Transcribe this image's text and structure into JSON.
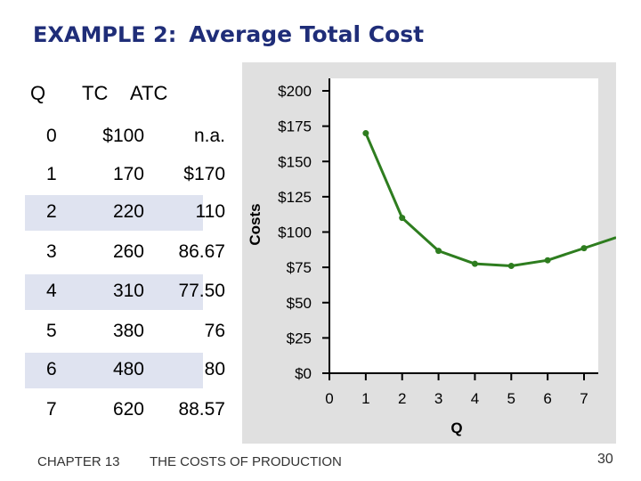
{
  "slide": {
    "title_lead": "EXAMPLE 2:",
    "title_main": "Average Total Cost",
    "footer_chapter": "CHAPTER 13",
    "footer_topic": "THE COSTS OF PRODUCTION",
    "page_number": "30"
  },
  "table": {
    "headers": {
      "q": "Q",
      "tc": "TC",
      "atc": "ATC"
    },
    "rows": [
      {
        "q": "0",
        "tc": "$100",
        "atc": "n.a."
      },
      {
        "q": "1",
        "tc": "170",
        "atc": "$170"
      },
      {
        "q": "2",
        "tc": "220",
        "atc": "110"
      },
      {
        "q": "3",
        "tc": "260",
        "atc": "86.67"
      },
      {
        "q": "4",
        "tc": "310",
        "atc": "77.50"
      },
      {
        "q": "5",
        "tc": "380",
        "atc": "76"
      },
      {
        "q": "6",
        "tc": "480",
        "atc": "80"
      },
      {
        "q": "7",
        "tc": "620",
        "atc": "88.57"
      }
    ]
  },
  "chart_data": {
    "type": "line",
    "xlabel": "Q",
    "ylabel": "Costs",
    "xlim": [
      0,
      7
    ],
    "ylim": [
      0,
      200
    ],
    "x_ticks": [
      "0",
      "1",
      "2",
      "3",
      "4",
      "5",
      "6",
      "7"
    ],
    "y_ticks": [
      {
        "v": 0,
        "label": "$0"
      },
      {
        "v": 25,
        "label": "$25"
      },
      {
        "v": 50,
        "label": "$50"
      },
      {
        "v": 75,
        "label": "$75"
      },
      {
        "v": 100,
        "label": "$100"
      },
      {
        "v": 125,
        "label": "$125"
      },
      {
        "v": 150,
        "label": "$150"
      },
      {
        "v": 175,
        "label": "$175"
      },
      {
        "v": 200,
        "label": "$200"
      }
    ],
    "series": [
      {
        "x": [
          1,
          2,
          3,
          4,
          5,
          6,
          7
        ],
        "values": [
          170,
          110,
          86.67,
          77.5,
          76,
          80,
          88.57
        ],
        "color": "#2e7d1f"
      }
    ],
    "grid": false,
    "plot_background": "#ffffff",
    "panel_background": "#e0e0e0"
  }
}
